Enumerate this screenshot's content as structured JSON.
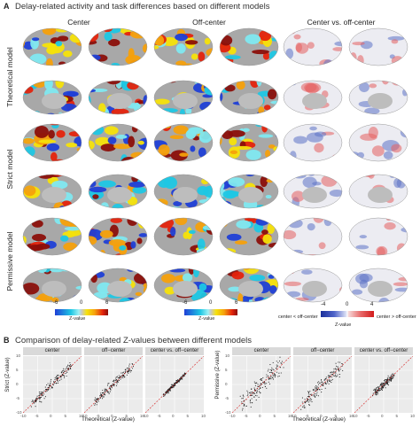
{
  "panelA": {
    "letter": "A",
    "title": "Delay-related activity and task differences based on different models",
    "columns": [
      "Center",
      "Off-center",
      "Center vs. off-center"
    ],
    "rows": [
      "Theoretical model",
      "Strict model",
      "Permissive model"
    ],
    "colorbars": [
      {
        "ticks": [
          "-6",
          "0",
          "6"
        ],
        "caption": "Z-value"
      },
      {
        "ticks": [
          "-6",
          "0",
          "6"
        ],
        "caption": "Z-value"
      },
      {
        "ticks": [
          "-4",
          "0",
          "4"
        ],
        "caption": "Z-value",
        "left_note": "center < off-center",
        "right_note": "center > off-center"
      }
    ]
  },
  "panelB": {
    "letter": "B",
    "title": "Comparison of delay-related Z-values between different models",
    "groups": [
      {
        "ylabel": "Strict (Z-value)",
        "facets": [
          "center",
          "off−center",
          "center vs. off−center"
        ]
      },
      {
        "ylabel": "Permissive (Z-value)",
        "facets": [
          "center",
          "off−center",
          "center vs. off−center"
        ]
      }
    ],
    "xlabel": "Theoretical (Z-value)",
    "xticks": [
      "-10",
      "-5",
      "0",
      "5",
      "10"
    ],
    "yticks": [
      "10",
      "5",
      "0",
      "-5",
      "-10"
    ]
  },
  "colors": {
    "warm": [
      "#f6e20a",
      "#f5a00b",
      "#e4230c",
      "#8b0f0a"
    ],
    "cool": [
      "#1f3fd6",
      "#1ec7e4",
      "#7fe8f0"
    ],
    "gray": "#a8a8a8",
    "diff_red": "#e66060",
    "diff_blue": "#5c72c6",
    "diag": "#d62020",
    "point": "#1a1a1a"
  }
}
